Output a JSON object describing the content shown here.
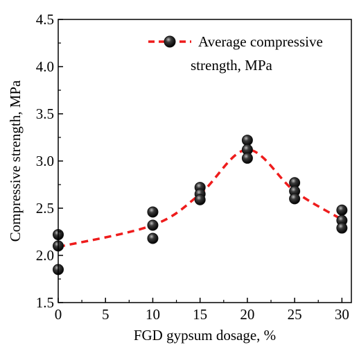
{
  "chart_data": {
    "type": "scatter",
    "xlabel": "FGD gypsum dosage, %",
    "ylabel": "Compressive strength, MPa",
    "xlim": [
      0,
      31
    ],
    "ylim": [
      1.5,
      4.5
    ],
    "x_ticks": [
      "0",
      "5",
      "10",
      "15",
      "20",
      "25",
      "30"
    ],
    "y_ticks": [
      "1.5",
      "2.0",
      "2.5",
      "3.0",
      "3.5",
      "4.0",
      "4.5"
    ],
    "grid": false,
    "legend_position": "top-right",
    "legend_lines": [
      "Average compressive",
      "strength, MPa"
    ],
    "colors": {
      "average_line": "#ee1c1c",
      "marker": "#111111"
    },
    "series": [
      {
        "kind": "points",
        "x": [
          0,
          0,
          0,
          10,
          10,
          10,
          15,
          15,
          15,
          20,
          20,
          20,
          25,
          25,
          25,
          30,
          30,
          30
        ],
        "y": [
          2.22,
          2.1,
          1.85,
          2.46,
          2.32,
          2.18,
          2.72,
          2.65,
          2.59,
          3.22,
          3.12,
          3.03,
          2.77,
          2.68,
          2.6,
          2.48,
          2.37,
          2.29
        ]
      },
      {
        "name": "Average compressive strength, MPa",
        "kind": "line",
        "x": [
          0,
          10,
          15,
          20,
          25,
          30
        ],
        "y": [
          2.09,
          2.32,
          2.65,
          3.12,
          2.68,
          2.38
        ]
      }
    ]
  }
}
